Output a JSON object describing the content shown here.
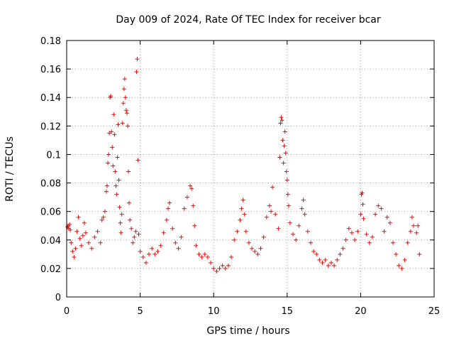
{
  "chart_data": {
    "type": "scatter",
    "title": "Day 009 of 2024, Rate Of TEC Index for receiver bcar",
    "xlabel": "GPS time / hours",
    "ylabel": "ROTI / TECUs",
    "xlim": [
      0,
      25
    ],
    "ylim": [
      0,
      0.18
    ],
    "xticks": [
      0,
      5,
      10,
      15,
      20,
      25
    ],
    "xtick_labels": [
      "0",
      "5",
      "10",
      "15",
      "20",
      "25"
    ],
    "yticks": [
      0,
      0.02,
      0.04,
      0.06,
      0.08,
      0.1,
      0.12,
      0.14,
      0.16,
      0.18
    ],
    "ytick_labels": [
      "0",
      "0.02",
      "0.04",
      "0.06",
      "0.08",
      "0.1",
      "0.12",
      "0.14",
      "0.16",
      "0.18"
    ],
    "grid": true,
    "marker": "+",
    "color": "#ff0000",
    "series": [
      {
        "points": [
          [
            0.05,
            0.049
          ],
          [
            0.1,
            0.05
          ],
          [
            0.15,
            0.048
          ],
          [
            0.2,
            0.051
          ],
          [
            0.25,
            0.047
          ],
          [
            0.3,
            0.038
          ],
          [
            0.4,
            0.032
          ],
          [
            0.5,
            0.028
          ],
          [
            0.6,
            0.034
          ],
          [
            0.7,
            0.046
          ],
          [
            0.8,
            0.056
          ],
          [
            0.9,
            0.041
          ],
          [
            1.0,
            0.036
          ],
          [
            1.1,
            0.043
          ],
          [
            1.2,
            0.052
          ],
          [
            1.3,
            0.045
          ],
          [
            1.5,
            0.038
          ],
          [
            1.7,
            0.034
          ],
          [
            1.9,
            0.042
          ],
          [
            2.1,
            0.046
          ],
          [
            2.3,
            0.038
          ],
          [
            2.4,
            0.054
          ],
          [
            2.5,
            0.056
          ],
          [
            2.6,
            0.06
          ],
          [
            2.7,
            0.074
          ],
          [
            2.75,
            0.078
          ],
          [
            2.8,
            0.094
          ],
          [
            2.85,
            0.1
          ],
          [
            2.9,
            0.115
          ],
          [
            2.95,
            0.14
          ],
          [
            3.0,
            0.141
          ],
          [
            3.05,
            0.116
          ],
          [
            3.1,
            0.105
          ],
          [
            3.15,
            0.092
          ],
          [
            3.2,
            0.128
          ],
          [
            3.25,
            0.114
          ],
          [
            3.3,
            0.088
          ],
          [
            3.35,
            0.078
          ],
          [
            3.4,
            0.072
          ],
          [
            3.45,
            0.098
          ],
          [
            3.5,
            0.121
          ],
          [
            3.55,
            0.082
          ],
          [
            3.6,
            0.063
          ],
          [
            3.65,
            0.052
          ],
          [
            3.7,
            0.045
          ],
          [
            3.75,
            0.058
          ],
          [
            3.8,
            0.122
          ],
          [
            3.85,
            0.136
          ],
          [
            3.9,
            0.146
          ],
          [
            3.95,
            0.153
          ],
          [
            4.0,
            0.14
          ],
          [
            4.05,
            0.131
          ],
          [
            4.1,
            0.129
          ],
          [
            4.15,
            0.12
          ],
          [
            4.2,
            0.088
          ],
          [
            4.25,
            0.066
          ],
          [
            4.3,
            0.054
          ],
          [
            4.4,
            0.048
          ],
          [
            4.5,
            0.038
          ],
          [
            4.6,
            0.042
          ],
          [
            4.7,
            0.046
          ],
          [
            4.75,
            0.158
          ],
          [
            4.8,
            0.167
          ],
          [
            4.85,
            0.096
          ],
          [
            4.9,
            0.044
          ],
          [
            5.0,
            0.032
          ],
          [
            5.2,
            0.028
          ],
          [
            5.4,
            0.024
          ],
          [
            5.6,
            0.03
          ],
          [
            5.8,
            0.034
          ],
          [
            6.0,
            0.03
          ],
          [
            6.2,
            0.032
          ],
          [
            6.4,
            0.036
          ],
          [
            6.6,
            0.045
          ],
          [
            6.8,
            0.054
          ],
          [
            6.9,
            0.062
          ],
          [
            7.0,
            0.066
          ],
          [
            7.2,
            0.048
          ],
          [
            7.4,
            0.038
          ],
          [
            7.6,
            0.034
          ],
          [
            7.8,
            0.042
          ],
          [
            8.0,
            0.062
          ],
          [
            8.2,
            0.07
          ],
          [
            8.4,
            0.078
          ],
          [
            8.5,
            0.076
          ],
          [
            8.6,
            0.064
          ],
          [
            8.7,
            0.05
          ],
          [
            8.8,
            0.036
          ],
          [
            9.0,
            0.03
          ],
          [
            9.2,
            0.028
          ],
          [
            9.4,
            0.03
          ],
          [
            9.6,
            0.028
          ],
          [
            9.8,
            0.024
          ],
          [
            10.0,
            0.02
          ],
          [
            10.2,
            0.018
          ],
          [
            10.4,
            0.02
          ],
          [
            10.6,
            0.022
          ],
          [
            10.8,
            0.02
          ],
          [
            11.0,
            0.022
          ],
          [
            11.2,
            0.028
          ],
          [
            11.4,
            0.04
          ],
          [
            11.6,
            0.046
          ],
          [
            11.8,
            0.054
          ],
          [
            11.9,
            0.062
          ],
          [
            12.0,
            0.068
          ],
          [
            12.1,
            0.058
          ],
          [
            12.2,
            0.046
          ],
          [
            12.4,
            0.038
          ],
          [
            12.6,
            0.034
          ],
          [
            12.8,
            0.032
          ],
          [
            13.0,
            0.03
          ],
          [
            13.2,
            0.034
          ],
          [
            13.4,
            0.042
          ],
          [
            13.6,
            0.056
          ],
          [
            13.8,
            0.064
          ],
          [
            13.9,
            0.06
          ],
          [
            14.0,
            0.077
          ],
          [
            14.2,
            0.058
          ],
          [
            14.4,
            0.048
          ],
          [
            14.5,
            0.098
          ],
          [
            14.55,
            0.122
          ],
          [
            14.6,
            0.126
          ],
          [
            14.65,
            0.124
          ],
          [
            14.7,
            0.11
          ],
          [
            14.75,
            0.094
          ],
          [
            14.8,
            0.106
          ],
          [
            14.85,
            0.116
          ],
          [
            14.9,
            0.101
          ],
          [
            14.95,
            0.088
          ],
          [
            15.0,
            0.082
          ],
          [
            15.05,
            0.072
          ],
          [
            15.1,
            0.064
          ],
          [
            15.2,
            0.052
          ],
          [
            15.4,
            0.044
          ],
          [
            15.6,
            0.04
          ],
          [
            15.8,
            0.05
          ],
          [
            16.0,
            0.062
          ],
          [
            16.1,
            0.068
          ],
          [
            16.2,
            0.058
          ],
          [
            16.4,
            0.046
          ],
          [
            16.6,
            0.038
          ],
          [
            16.8,
            0.032
          ],
          [
            17.0,
            0.03
          ],
          [
            17.2,
            0.026
          ],
          [
            17.4,
            0.024
          ],
          [
            17.6,
            0.026
          ],
          [
            17.8,
            0.022
          ],
          [
            18.0,
            0.024
          ],
          [
            18.2,
            0.022
          ],
          [
            18.4,
            0.026
          ],
          [
            18.6,
            0.03
          ],
          [
            18.8,
            0.034
          ],
          [
            19.0,
            0.04
          ],
          [
            19.2,
            0.048
          ],
          [
            19.4,
            0.045
          ],
          [
            19.6,
            0.04
          ],
          [
            19.8,
            0.046
          ],
          [
            20.0,
            0.058
          ],
          [
            20.05,
            0.072
          ],
          [
            20.1,
            0.073
          ],
          [
            20.15,
            0.065
          ],
          [
            20.2,
            0.055
          ],
          [
            20.4,
            0.044
          ],
          [
            20.6,
            0.038
          ],
          [
            20.8,
            0.042
          ],
          [
            21.0,
            0.058
          ],
          [
            21.2,
            0.064
          ],
          [
            21.4,
            0.062
          ],
          [
            21.6,
            0.046
          ],
          [
            21.8,
            0.056
          ],
          [
            22.0,
            0.052
          ],
          [
            22.2,
            0.038
          ],
          [
            22.4,
            0.03
          ],
          [
            22.6,
            0.022
          ],
          [
            22.8,
            0.02
          ],
          [
            23.0,
            0.026
          ],
          [
            23.2,
            0.038
          ],
          [
            23.4,
            0.046
          ],
          [
            23.5,
            0.056
          ],
          [
            23.6,
            0.05
          ],
          [
            23.8,
            0.045
          ],
          [
            23.9,
            0.05
          ],
          [
            24.0,
            0.03
          ]
        ]
      }
    ]
  }
}
